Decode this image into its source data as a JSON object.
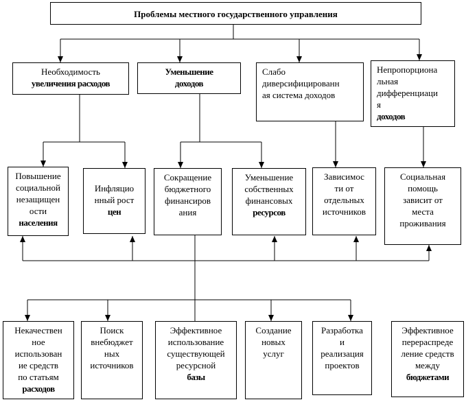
{
  "title": "Проблемы местного государственного управления",
  "level1": [
    {
      "lines": [
        "Необходимость"
      ],
      "bold": [
        "увеличения расходов"
      ]
    },
    {
      "lines": [],
      "bold": [
        "Уменьшение",
        "доходов"
      ]
    },
    {
      "lines": [
        "Слабо",
        "диверсифицированн",
        "ая система доходов"
      ],
      "bold": []
    },
    {
      "lines": [
        "Непропорциона",
        "льная",
        "дифференциаци",
        "я"
      ],
      "bold": [
        "доходов"
      ]
    }
  ],
  "level2": [
    {
      "lines": [
        "Повышение",
        "социальной",
        "незащищен",
        "ости"
      ],
      "bold": [
        "населения"
      ]
    },
    {
      "lines": [
        "Инфляцио",
        "нный рост"
      ],
      "bold": [
        "цен"
      ]
    },
    {
      "lines": [
        "Сокращение",
        "бюджетного",
        "финансиров",
        "ания"
      ],
      "bold": []
    },
    {
      "lines": [
        "Уменьшение",
        "собственных",
        "финансовых"
      ],
      "bold": [
        "ресурсов"
      ]
    },
    {
      "lines": [
        "Зависимос",
        "ти от",
        "отдельных",
        "источников"
      ],
      "bold": []
    },
    {
      "lines": [
        "Социальная",
        "помощь",
        "зависит от",
        "места",
        "проживания"
      ],
      "bold": []
    }
  ],
  "level3": [
    {
      "lines": [
        "Некачествен",
        "ное",
        "использован",
        "ие средств",
        "по статьям"
      ],
      "bold": [
        "расходов"
      ]
    },
    {
      "lines": [
        "Поиск",
        "внебюджет",
        "ных",
        "источников"
      ],
      "bold": []
    },
    {
      "lines": [
        "Эффективное",
        "использование",
        "существующей",
        "ресурсной"
      ],
      "bold": [
        "базы"
      ]
    },
    {
      "lines": [
        "Создание",
        "новых",
        "услуг"
      ],
      "bold": []
    },
    {
      "lines": [
        "Разработка",
        "и",
        "реализация",
        "проектов"
      ],
      "bold": []
    },
    {
      "lines": [
        "Эффективное",
        "перераспреде",
        "ление средств",
        "между"
      ],
      "bold": [
        "бюджетами"
      ]
    }
  ]
}
